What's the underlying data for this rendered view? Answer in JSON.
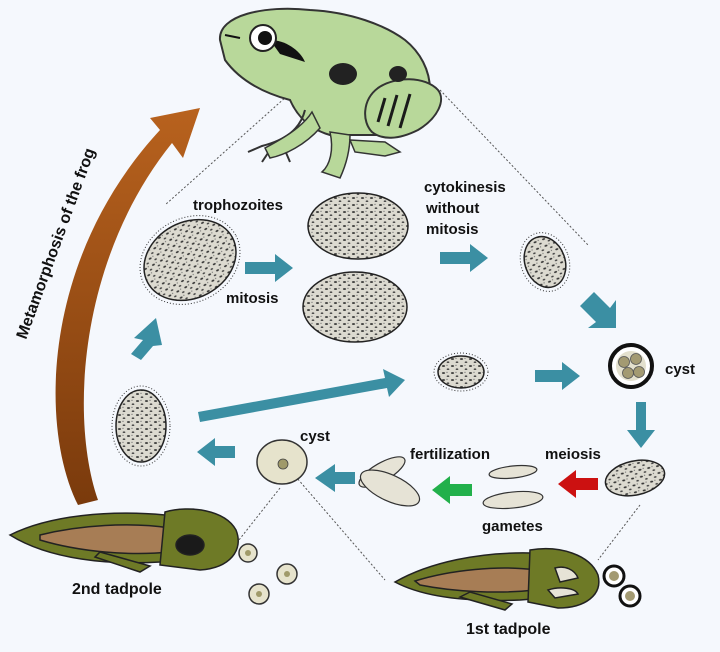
{
  "labels": {
    "trophozoites": "trophozoites",
    "mitosis": "mitosis",
    "cytokinesis_1": "cytokinesis",
    "cytokinesis_2": "without",
    "cytokinesis_3": "mitosis",
    "cyst_right": "cyst",
    "cyst_left": "cyst",
    "meiosis": "meiosis",
    "fertilization": "fertilization",
    "gametes": "gametes",
    "tadpole_1st": "1st tadpole",
    "tadpole_2nd": "2nd tadpole",
    "metamorphosis": "Metamorphosis of the frog"
  },
  "colors": {
    "background": "#f5f8fd",
    "teal_arrow": "#3b8fa3",
    "brown_arrow": "#9c4a10",
    "red_arrow": "#cc1111",
    "green_arrow": "#22b04b",
    "frog_green": "#b8d89a",
    "tadpole_olive": "#6e7a26",
    "cell_fill": "#dcdad0"
  }
}
